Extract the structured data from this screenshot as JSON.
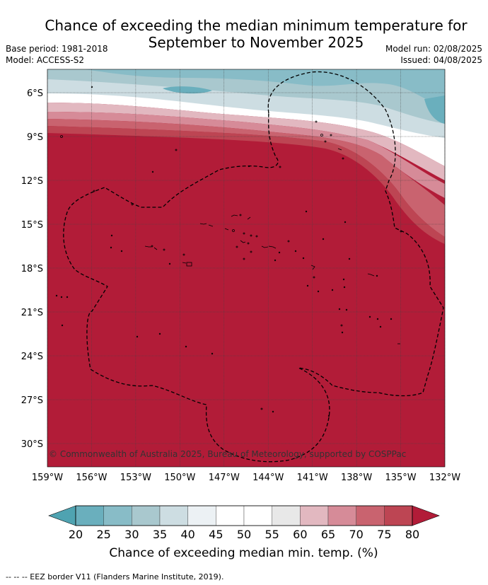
{
  "title_line1": "Chance of exceeding the median minimum temperature for",
  "title_line2": "September to November 2025",
  "base_period": "Base period: 1981-2018",
  "model": "Model: ACCESS-S2",
  "model_run": "Model run: 02/08/2025",
  "issued": "Issued: 04/08/2025",
  "copyright": "© Commonwealth of Australia 2025, Bureau of Meteorology, supported by COSPPac",
  "lat_labels": [
    "6°S",
    "9°S",
    "12°S",
    "15°S",
    "18°S",
    "21°S",
    "24°S",
    "27°S",
    "30°S"
  ],
  "lon_labels": [
    "159°W",
    "156°W",
    "153°W",
    "150°W",
    "147°W",
    "144°W",
    "141°W",
    "138°W",
    "135°W",
    "132°W"
  ],
  "colorbar": {
    "title": "Chance of exceeding median min. temp. (%)",
    "ticks": [
      "20",
      "25",
      "30",
      "35",
      "40",
      "45",
      "50",
      "55",
      "60",
      "65",
      "70",
      "75",
      "80"
    ],
    "colors": [
      "#4fa3b1",
      "#6aafbd",
      "#88bcc7",
      "#a9c8ce",
      "#cddde2",
      "#ecf1f4",
      "#ffffff",
      "#ffffff",
      "#e8e8e8",
      "#e2b8c0",
      "#d68b98",
      "#c9636f",
      "#bd4553",
      "#b21c38"
    ]
  },
  "footer": "--  --  -- EEZ border V11 (Flanders Marine Institute, 2019)."
}
